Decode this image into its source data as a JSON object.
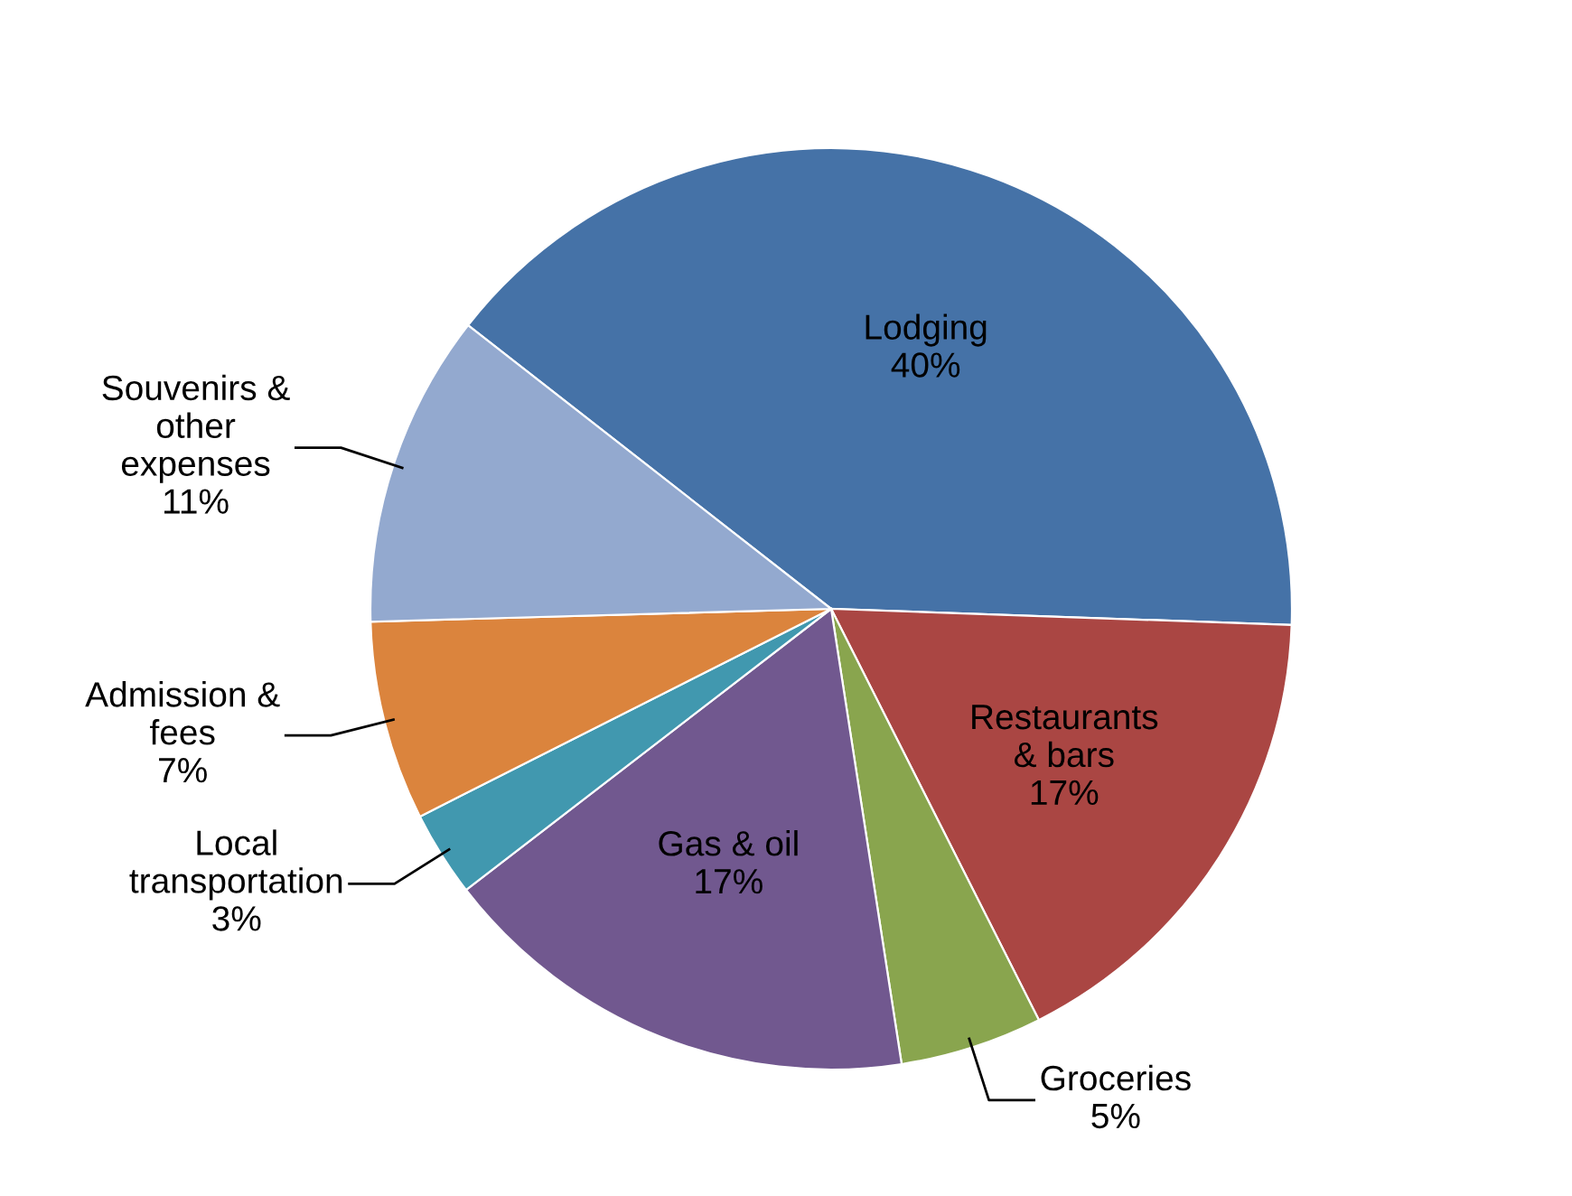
{
  "chart_data": {
    "type": "pie",
    "categories": [
      "Lodging\n40%",
      "Restaurants\n& bars\n17%",
      "Groceries\n5%",
      "Gas & oil\n17%",
      "Local\ntransportation\n3%",
      "Admission &\nfees\n7%",
      "Souvenirs &\nother\nexpenses\n11%"
    ],
    "values": [
      40,
      17,
      5,
      17,
      3,
      7,
      11
    ],
    "colors": [
      "#4572a7",
      "#aa4643",
      "#89a54e",
      "#71588f",
      "#4198af",
      "#db843d",
      "#93a9cf"
    ],
    "legend": false
  }
}
